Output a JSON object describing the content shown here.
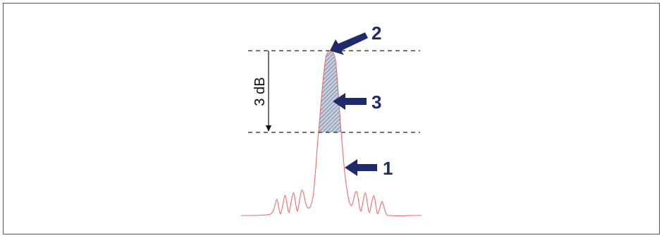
{
  "labels": {
    "level": "3 dB",
    "marker_1": "1",
    "marker_2": "2",
    "marker_3": "3"
  },
  "colors": {
    "curve": "#e87070",
    "arrow": "#1f2a6b",
    "hatch": "#5a6a8a",
    "guide": "#222222"
  }
}
